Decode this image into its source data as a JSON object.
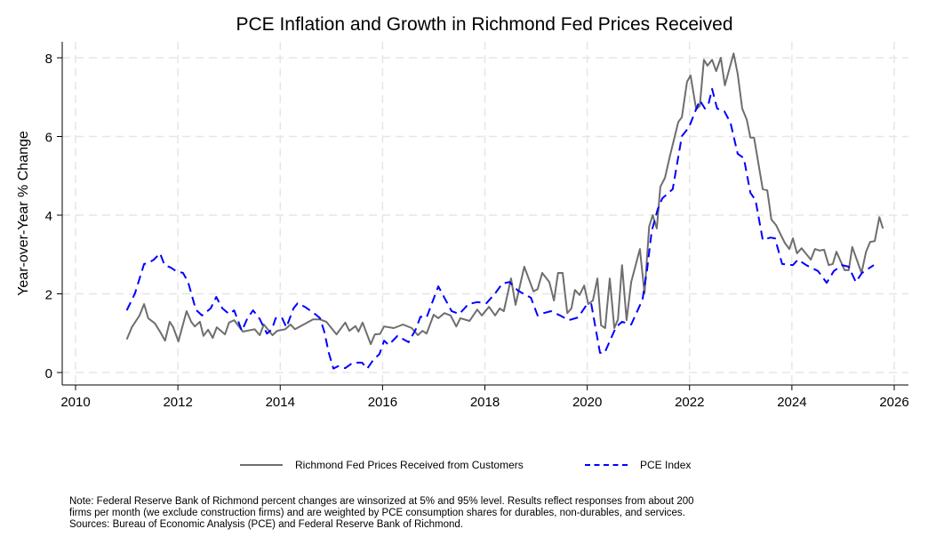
{
  "chart_data": {
    "type": "line",
    "title": "PCE Inflation and Growth in Richmond Fed Prices Received",
    "xlabel": "",
    "ylabel": "Year-over-Year % Change",
    "xlim": [
      2010,
      2026
    ],
    "ylim": [
      0,
      8
    ],
    "xticks": [
      2010,
      2012,
      2014,
      2016,
      2018,
      2020,
      2022,
      2024,
      2026
    ],
    "yticks": [
      0,
      2,
      4,
      6,
      8
    ],
    "grid": true,
    "legend_position": "bottom",
    "series": [
      {
        "name": "Richmond Fed Prices Received from Customers",
        "color": "#6e6e6e",
        "style": "solid",
        "points": [
          [
            2011.0,
            0.84
          ],
          [
            2011.1,
            1.15
          ],
          [
            2011.25,
            1.45
          ],
          [
            2011.34,
            1.74
          ],
          [
            2011.42,
            1.38
          ],
          [
            2011.55,
            1.25
          ],
          [
            2011.65,
            1.04
          ],
          [
            2011.75,
            0.81
          ],
          [
            2011.84,
            1.29
          ],
          [
            2011.91,
            1.15
          ],
          [
            2012.01,
            0.79
          ],
          [
            2012.17,
            1.56
          ],
          [
            2012.26,
            1.29
          ],
          [
            2012.33,
            1.17
          ],
          [
            2012.43,
            1.29
          ],
          [
            2012.5,
            0.93
          ],
          [
            2012.59,
            1.09
          ],
          [
            2012.68,
            0.88
          ],
          [
            2012.76,
            1.15
          ],
          [
            2012.92,
            0.97
          ],
          [
            2013.0,
            1.27
          ],
          [
            2013.1,
            1.33
          ],
          [
            2013.27,
            1.04
          ],
          [
            2013.5,
            1.1
          ],
          [
            2013.6,
            0.95
          ],
          [
            2013.68,
            1.22
          ],
          [
            2013.85,
            0.95
          ],
          [
            2013.94,
            1.06
          ],
          [
            2014.1,
            1.1
          ],
          [
            2014.2,
            1.22
          ],
          [
            2014.29,
            1.1
          ],
          [
            2014.46,
            1.22
          ],
          [
            2014.64,
            1.35
          ],
          [
            2014.78,
            1.35
          ],
          [
            2014.9,
            1.29
          ],
          [
            2015.1,
            0.97
          ],
          [
            2015.27,
            1.27
          ],
          [
            2015.35,
            1.06
          ],
          [
            2015.47,
            1.18
          ],
          [
            2015.53,
            1.04
          ],
          [
            2015.61,
            1.27
          ],
          [
            2015.77,
            0.72
          ],
          [
            2015.85,
            0.97
          ],
          [
            2015.95,
            0.98
          ],
          [
            2016.03,
            1.17
          ],
          [
            2016.22,
            1.13
          ],
          [
            2016.4,
            1.22
          ],
          [
            2016.57,
            1.13
          ],
          [
            2016.69,
            0.95
          ],
          [
            2016.78,
            1.06
          ],
          [
            2016.86,
            0.99
          ],
          [
            2017.0,
            1.47
          ],
          [
            2017.09,
            1.38
          ],
          [
            2017.21,
            1.51
          ],
          [
            2017.33,
            1.45
          ],
          [
            2017.44,
            1.17
          ],
          [
            2017.52,
            1.38
          ],
          [
            2017.7,
            1.31
          ],
          [
            2017.85,
            1.6
          ],
          [
            2017.94,
            1.45
          ],
          [
            2018.08,
            1.67
          ],
          [
            2018.2,
            1.45
          ],
          [
            2018.29,
            1.63
          ],
          [
            2018.37,
            1.56
          ],
          [
            2018.51,
            2.39
          ],
          [
            2018.6,
            1.72
          ],
          [
            2018.77,
            2.69
          ],
          [
            2018.95,
            2.06
          ],
          [
            2019.03,
            2.12
          ],
          [
            2019.12,
            2.53
          ],
          [
            2019.26,
            2.3
          ],
          [
            2019.35,
            1.83
          ],
          [
            2019.43,
            2.53
          ],
          [
            2019.52,
            2.53
          ],
          [
            2019.61,
            1.51
          ],
          [
            2019.69,
            1.63
          ],
          [
            2019.76,
            2.1
          ],
          [
            2019.85,
            1.97
          ],
          [
            2019.94,
            2.21
          ],
          [
            2020.02,
            1.74
          ],
          [
            2020.11,
            1.83
          ],
          [
            2020.2,
            2.39
          ],
          [
            2020.27,
            1.2
          ],
          [
            2020.35,
            1.13
          ],
          [
            2020.44,
            2.39
          ],
          [
            2020.53,
            1.13
          ],
          [
            2020.6,
            1.35
          ],
          [
            2020.68,
            2.73
          ],
          [
            2020.77,
            1.33
          ],
          [
            2020.86,
            2.3
          ],
          [
            2021.03,
            3.14
          ],
          [
            2021.12,
            2.01
          ],
          [
            2021.21,
            3.71
          ],
          [
            2021.28,
            4.0
          ],
          [
            2021.36,
            3.66
          ],
          [
            2021.43,
            4.72
          ],
          [
            2021.52,
            4.95
          ],
          [
            2021.61,
            5.47
          ],
          [
            2021.78,
            6.37
          ],
          [
            2021.85,
            6.49
          ],
          [
            2021.95,
            7.39
          ],
          [
            2022.02,
            7.55
          ],
          [
            2022.13,
            6.69
          ],
          [
            2022.2,
            6.78
          ],
          [
            2022.28,
            7.95
          ],
          [
            2022.35,
            7.8
          ],
          [
            2022.44,
            7.95
          ],
          [
            2022.52,
            7.66
          ],
          [
            2022.61,
            8.0
          ],
          [
            2022.69,
            7.3
          ],
          [
            2022.86,
            8.11
          ],
          [
            2022.94,
            7.59
          ],
          [
            2023.03,
            6.71
          ],
          [
            2023.12,
            6.42
          ],
          [
            2023.19,
            5.97
          ],
          [
            2023.26,
            5.97
          ],
          [
            2023.43,
            4.66
          ],
          [
            2023.52,
            4.63
          ],
          [
            2023.6,
            3.89
          ],
          [
            2023.69,
            3.75
          ],
          [
            2023.86,
            3.3
          ],
          [
            2023.95,
            3.14
          ],
          [
            2024.02,
            3.41
          ],
          [
            2024.1,
            3.03
          ],
          [
            2024.19,
            3.16
          ],
          [
            2024.37,
            2.87
          ],
          [
            2024.45,
            3.14
          ],
          [
            2024.54,
            3.1
          ],
          [
            2024.63,
            3.12
          ],
          [
            2024.72,
            2.73
          ],
          [
            2024.8,
            2.76
          ],
          [
            2024.87,
            3.07
          ],
          [
            2025.03,
            2.6
          ],
          [
            2025.11,
            2.6
          ],
          [
            2025.18,
            3.19
          ],
          [
            2025.36,
            2.53
          ],
          [
            2025.45,
            3.07
          ],
          [
            2025.53,
            3.32
          ],
          [
            2025.62,
            3.34
          ],
          [
            2025.71,
            3.95
          ],
          [
            2025.78,
            3.66
          ]
        ]
      },
      {
        "name": "PCE Index",
        "color": "#0000ff",
        "style": "dashed",
        "points": [
          [
            2011.0,
            1.58
          ],
          [
            2011.16,
            2.01
          ],
          [
            2011.34,
            2.76
          ],
          [
            2011.42,
            2.78
          ],
          [
            2011.53,
            2.87
          ],
          [
            2011.65,
            3.03
          ],
          [
            2011.74,
            2.73
          ],
          [
            2011.86,
            2.67
          ],
          [
            2011.96,
            2.58
          ],
          [
            2012.1,
            2.53
          ],
          [
            2012.2,
            2.3
          ],
          [
            2012.35,
            1.6
          ],
          [
            2012.47,
            1.45
          ],
          [
            2012.64,
            1.63
          ],
          [
            2012.75,
            1.92
          ],
          [
            2012.87,
            1.63
          ],
          [
            2013.0,
            1.49
          ],
          [
            2013.1,
            1.58
          ],
          [
            2013.25,
            1.06
          ],
          [
            2013.36,
            1.38
          ],
          [
            2013.47,
            1.58
          ],
          [
            2013.6,
            1.36
          ],
          [
            2013.74,
            0.99
          ],
          [
            2013.84,
            1.1
          ],
          [
            2013.91,
            1.38
          ],
          [
            2014.03,
            1.4
          ],
          [
            2014.12,
            1.15
          ],
          [
            2014.26,
            1.63
          ],
          [
            2014.34,
            1.76
          ],
          [
            2014.48,
            1.67
          ],
          [
            2014.66,
            1.51
          ],
          [
            2014.78,
            1.38
          ],
          [
            2014.86,
            1.04
          ],
          [
            2014.95,
            0.5
          ],
          [
            2015.04,
            0.1
          ],
          [
            2015.13,
            0.16
          ],
          [
            2015.27,
            0.11
          ],
          [
            2015.42,
            0.25
          ],
          [
            2015.6,
            0.25
          ],
          [
            2015.7,
            0.1
          ],
          [
            2015.82,
            0.32
          ],
          [
            2015.94,
            0.47
          ],
          [
            2016.03,
            0.81
          ],
          [
            2016.12,
            0.7
          ],
          [
            2016.29,
            0.93
          ],
          [
            2016.51,
            0.77
          ],
          [
            2016.65,
            1.1
          ],
          [
            2016.74,
            1.42
          ],
          [
            2016.86,
            1.4
          ],
          [
            2017.09,
            2.19
          ],
          [
            2017.35,
            1.56
          ],
          [
            2017.5,
            1.49
          ],
          [
            2017.68,
            1.74
          ],
          [
            2017.85,
            1.79
          ],
          [
            2018.03,
            1.76
          ],
          [
            2018.2,
            2.01
          ],
          [
            2018.34,
            2.26
          ],
          [
            2018.48,
            2.3
          ],
          [
            2018.65,
            2.08
          ],
          [
            2018.9,
            1.9
          ],
          [
            2019.03,
            1.45
          ],
          [
            2019.15,
            1.51
          ],
          [
            2019.29,
            1.56
          ],
          [
            2019.47,
            1.45
          ],
          [
            2019.64,
            1.33
          ],
          [
            2019.82,
            1.4
          ],
          [
            2019.99,
            1.72
          ],
          [
            2020.08,
            1.74
          ],
          [
            2020.25,
            0.5
          ],
          [
            2020.34,
            0.5
          ],
          [
            2020.56,
            1.15
          ],
          [
            2020.68,
            1.29
          ],
          [
            2020.86,
            1.22
          ],
          [
            2021.08,
            1.85
          ],
          [
            2021.17,
            2.62
          ],
          [
            2021.26,
            3.6
          ],
          [
            2021.38,
            4.16
          ],
          [
            2021.47,
            4.43
          ],
          [
            2021.67,
            4.66
          ],
          [
            2021.85,
            6.01
          ],
          [
            2021.99,
            6.24
          ],
          [
            2022.1,
            6.6
          ],
          [
            2022.2,
            6.92
          ],
          [
            2022.3,
            6.71
          ],
          [
            2022.37,
            6.82
          ],
          [
            2022.44,
            7.21
          ],
          [
            2022.54,
            6.71
          ],
          [
            2022.68,
            6.64
          ],
          [
            2022.8,
            6.35
          ],
          [
            2022.94,
            5.56
          ],
          [
            2023.06,
            5.45
          ],
          [
            2023.19,
            4.57
          ],
          [
            2023.29,
            4.38
          ],
          [
            2023.43,
            3.37
          ],
          [
            2023.58,
            3.43
          ],
          [
            2023.67,
            3.41
          ],
          [
            2023.81,
            2.76
          ],
          [
            2024.02,
            2.73
          ],
          [
            2024.12,
            2.87
          ],
          [
            2024.28,
            2.73
          ],
          [
            2024.51,
            2.58
          ],
          [
            2024.68,
            2.28
          ],
          [
            2024.82,
            2.58
          ],
          [
            2024.98,
            2.73
          ],
          [
            2025.11,
            2.69
          ],
          [
            2025.25,
            2.3
          ],
          [
            2025.37,
            2.53
          ],
          [
            2025.6,
            2.73
          ]
        ]
      }
    ]
  },
  "note": {
    "line1": "Note: Federal Reserve Bank of Richmond percent changes are winsorized at 5% and 95% level. Results reflect responses from about 200",
    "line2": "firms per month (we exclude construction firms) and are weighted by PCE consumption shares for durables, non-durables, and services.",
    "line3": "Sources: Bureau of Economic Analysis (PCE) and Federal Reserve Bank of Richmond."
  }
}
